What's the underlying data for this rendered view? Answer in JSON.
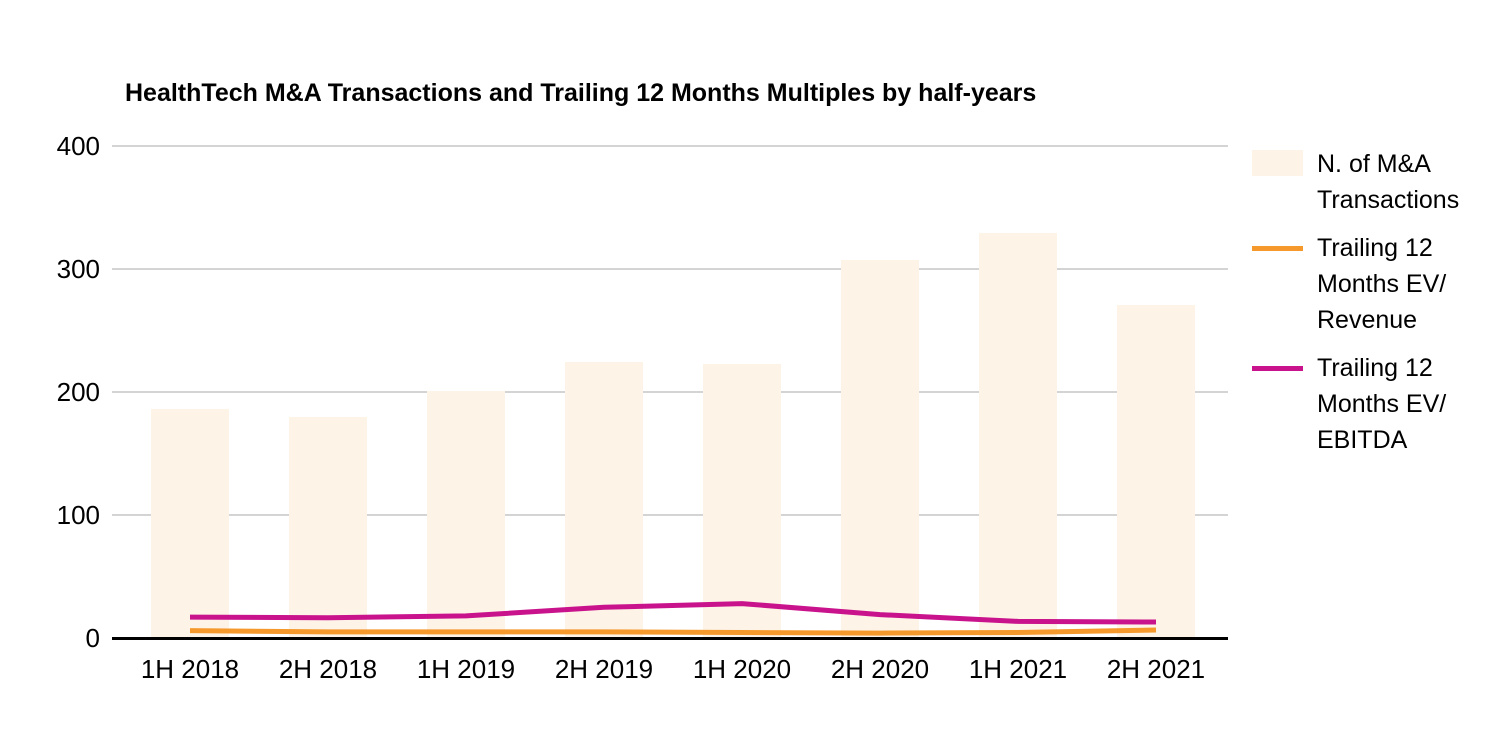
{
  "chart_data": {
    "type": "combo",
    "title": "HealthTech M&A Transactions and Trailing 12 Months Multiples by half-years",
    "categories": [
      "1H 2018",
      "2H 2018",
      "1H 2019",
      "2H 2019",
      "1H 2020",
      "2H 2020",
      "1H 2021",
      "2H 2021"
    ],
    "series": [
      {
        "name": "N. of M&A Transactions",
        "chart_type": "bar",
        "color": "#FDF3E7",
        "values": [
          186,
          180,
          201,
          224,
          223,
          307,
          329,
          271
        ]
      },
      {
        "name": "Trailing 12 Months EV/Revenue",
        "chart_type": "line",
        "color": "#F6992C",
        "values": [
          6,
          5,
          5,
          5,
          4.5,
          4,
          4.5,
          6.5
        ]
      },
      {
        "name": "Trailing 12 Months EV/EBITDA",
        "chart_type": "line",
        "color": "#C9138C",
        "values": [
          17,
          16.5,
          18,
          25,
          28,
          19,
          13.5,
          13
        ]
      }
    ],
    "ylim": [
      0,
      400
    ],
    "yticks": [
      0,
      100,
      200,
      300,
      400
    ],
    "ytick_labels": [
      "0",
      "100",
      "200",
      "300",
      "400"
    ],
    "grid": true,
    "legend_position": "right"
  },
  "colors": {
    "bar_fill": "#FDF3E7",
    "ev_revenue_line": "#F6992C",
    "ev_ebitda_line": "#C9138C",
    "gridline": "#d4d4d4",
    "axis_line": "#000000",
    "text": "#000000",
    "background": "#ffffff"
  },
  "legend": {
    "items": [
      {
        "swatch": "bar",
        "color": "#FDF3E7",
        "lines": [
          "N. of M&A",
          "Transactions"
        ]
      },
      {
        "swatch": "line",
        "color": "#F6992C",
        "lines": [
          "Trailing 12",
          "Months EV/",
          "Revenue"
        ]
      },
      {
        "swatch": "line",
        "color": "#C9138C",
        "lines": [
          "Trailing 12",
          "Months EV/",
          "EBITDA"
        ]
      }
    ]
  }
}
